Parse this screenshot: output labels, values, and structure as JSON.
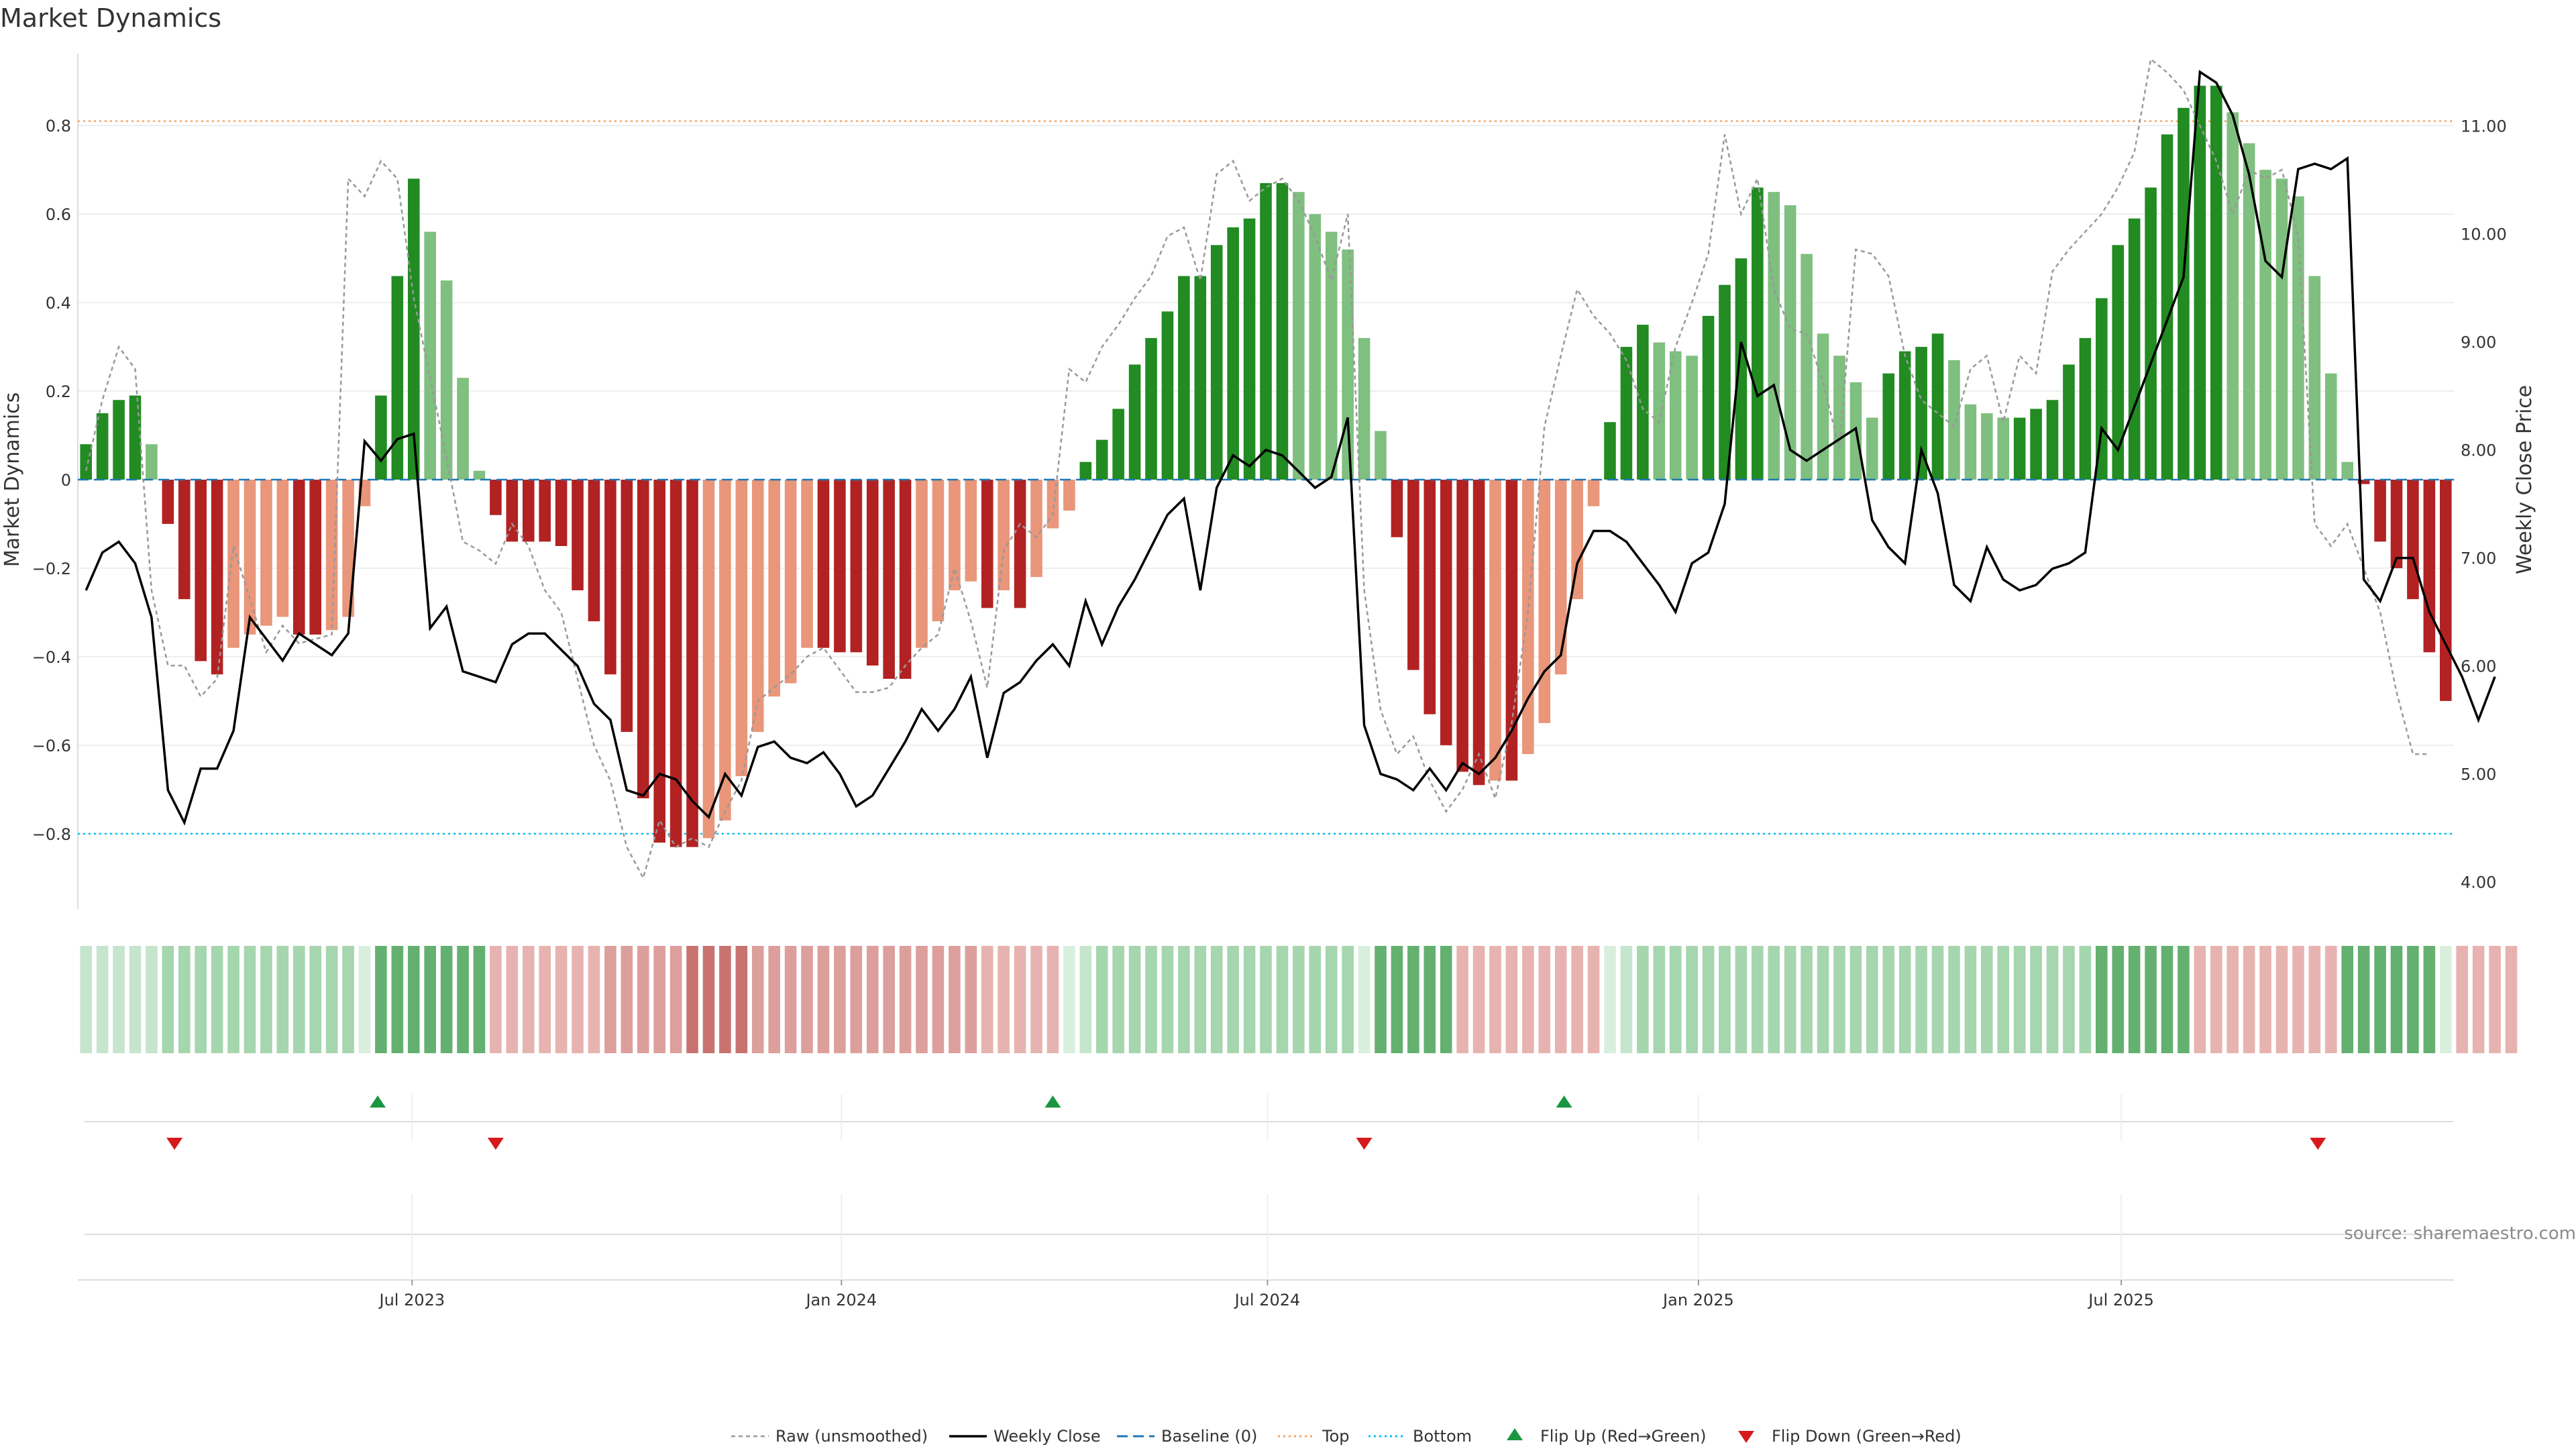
{
  "title": "Market Dynamics",
  "source": "source: sharemaestro.com",
  "colors": {
    "green_strong": "#228b22",
    "green_light": "#7fbf7f",
    "red_strong": "#b22222",
    "red_light": "#e9967a",
    "close_line": "#000000",
    "raw_line": "#999999",
    "baseline": "#1f77b4",
    "top": "#f4a460",
    "bottom": "#00bfff",
    "flip_up": "#1a9641",
    "flip_down": "#d7191c",
    "grid": "#eeeeee"
  },
  "chart_data": {
    "type": "bar",
    "title": "Market Dynamics",
    "ylabel": "Market Dynamics",
    "y2label": "Weekly Close Price",
    "ylim": [
      -0.97,
      0.97
    ],
    "y2lim": [
      3.75,
      11.7
    ],
    "yticks": [
      0.8,
      0.6,
      0.4,
      0.2,
      0,
      -0.2,
      -0.4,
      -0.6,
      -0.8
    ],
    "ytick_labels": [
      "0.8",
      "0.6",
      "0.4",
      "0.2",
      "0",
      "−0.2",
      "−0.4",
      "−0.6",
      "−0.8"
    ],
    "y2ticks": [
      11,
      10,
      9,
      8,
      7,
      6,
      5,
      4
    ],
    "y2tick_labels": [
      "11.00",
      "10.00",
      "9.00",
      "8.00",
      "7.00",
      "6.00",
      "5.00",
      "4.00"
    ],
    "x_start": "2023-02-13",
    "x_end": "2025-10-20",
    "xticks": [
      {
        "label": "Jul 2023",
        "week": 20.4
      },
      {
        "label": "Jan 2024",
        "week": 46.6
      },
      {
        "label": "Jul 2024",
        "week": 72.6
      },
      {
        "label": "Jan 2025",
        "week": 98.9
      },
      {
        "label": "Jul 2025",
        "week": 124.7
      }
    ],
    "top_threshold": 0.81,
    "bottom_threshold": -0.8,
    "baseline": 0,
    "series": [
      {
        "name": "Market Dynamics",
        "values": [
          0.08,
          0.15,
          0.18,
          0.19,
          0.08,
          -0.1,
          -0.27,
          -0.41,
          -0.44,
          -0.38,
          -0.35,
          -0.33,
          -0.31,
          -0.35,
          -0.35,
          -0.34,
          -0.31,
          -0.06,
          0.19,
          0.46,
          0.68,
          0.56,
          0.45,
          0.23,
          0.02,
          -0.08,
          -0.14,
          -0.14,
          -0.14,
          -0.15,
          -0.25,
          -0.32,
          -0.44,
          -0.57,
          -0.72,
          -0.82,
          -0.83,
          -0.83,
          -0.81,
          -0.77,
          -0.67,
          -0.57,
          -0.49,
          -0.46,
          -0.38,
          -0.38,
          -0.39,
          -0.39,
          -0.42,
          -0.45,
          -0.45,
          -0.38,
          -0.32,
          -0.25,
          -0.23,
          -0.29,
          -0.25,
          -0.29,
          -0.22,
          -0.11,
          -0.07,
          0.04,
          0.09,
          0.16,
          0.26,
          0.32,
          0.38,
          0.46,
          0.46,
          0.53,
          0.57,
          0.59,
          0.67,
          0.67,
          0.65,
          0.6,
          0.56,
          0.52,
          0.32,
          0.11,
          -0.13,
          -0.43,
          -0.53,
          -0.6,
          -0.66,
          -0.69,
          -0.68,
          -0.68,
          -0.62,
          -0.55,
          -0.44,
          -0.27,
          -0.06,
          0.13,
          0.3,
          0.35,
          0.31,
          0.29,
          0.28,
          0.37,
          0.44,
          0.5,
          0.66,
          0.65,
          0.62,
          0.51,
          0.33,
          0.28,
          0.22,
          0.14,
          0.24,
          0.29,
          0.3,
          0.33,
          0.27,
          0.17,
          0.15,
          0.14,
          0.14,
          0.16,
          0.18,
          0.26,
          0.32,
          0.41,
          0.53,
          0.59,
          0.66,
          0.78,
          0.84,
          0.89,
          0.89,
          0.83,
          0.76,
          0.7,
          0.68,
          0.64,
          0.46,
          0.24,
          0.04,
          -0.01,
          -0.14,
          -0.2,
          -0.27,
          -0.39,
          -0.5
        ]
      },
      {
        "name": "Weekly Close",
        "axis": "right",
        "values": [
          6.7,
          7.05,
          7.15,
          6.95,
          6.45,
          4.85,
          4.55,
          5.05,
          5.05,
          5.4,
          6.45,
          6.25,
          6.05,
          6.3,
          6.2,
          6.1,
          6.3,
          8.08,
          7.9,
          8.1,
          8.15,
          6.35,
          6.55,
          5.95,
          5.9,
          5.85,
          6.2,
          6.3,
          6.3,
          6.15,
          6.0,
          5.65,
          5.5,
          4.85,
          4.8,
          5.0,
          4.95,
          4.75,
          4.6,
          5.0,
          4.8,
          5.25,
          5.3,
          5.15,
          5.1,
          5.2,
          5.0,
          4.7,
          4.8,
          5.05,
          5.3,
          5.6,
          5.4,
          5.6,
          5.9,
          5.15,
          5.75,
          5.85,
          6.05,
          6.2,
          6.0,
          6.6,
          6.2,
          6.55,
          6.8,
          7.1,
          7.4,
          7.55,
          6.7,
          7.65,
          7.95,
          7.85,
          8.0,
          7.95,
          7.8,
          7.65,
          7.75,
          8.3,
          5.45,
          5.0,
          4.95,
          4.85,
          5.05,
          4.85,
          5.1,
          5.0,
          5.15,
          5.4,
          5.7,
          5.95,
          6.1,
          6.95,
          7.25,
          7.25,
          7.15,
          6.95,
          6.75,
          6.5,
          6.95,
          7.05,
          7.5,
          9.0,
          8.5,
          8.6,
          8.0,
          7.9,
          8.0,
          8.1,
          8.2,
          7.35,
          7.1,
          6.95,
          8.0,
          7.6,
          6.75,
          6.6,
          7.1,
          6.8,
          6.7,
          6.75,
          6.9,
          6.95,
          7.05,
          8.2,
          8.0,
          8.4,
          8.8,
          9.2,
          9.6,
          11.5,
          11.4,
          11.1,
          10.55,
          9.75,
          9.6,
          10.6,
          10.65,
          10.6,
          10.7,
          6.8,
          6.6,
          7.0,
          7.0,
          6.5,
          6.2,
          5.9,
          5.5,
          5.9
        ]
      },
      {
        "name": "Raw (unsmoothed)",
        "values": [
          0.02,
          0.18,
          0.3,
          0.25,
          -0.25,
          -0.42,
          -0.42,
          -0.49,
          -0.45,
          -0.15,
          -0.27,
          -0.39,
          -0.33,
          -0.37,
          -0.36,
          -0.35,
          0.68,
          0.64,
          0.72,
          0.68,
          0.41,
          0.23,
          0.05,
          -0.14,
          -0.16,
          -0.19,
          -0.1,
          -0.15,
          -0.25,
          -0.3,
          -0.45,
          -0.6,
          -0.68,
          -0.83,
          -0.9,
          -0.77,
          -0.83,
          -0.81,
          -0.83,
          -0.75,
          -0.68,
          -0.5,
          -0.47,
          -0.44,
          -0.4,
          -0.38,
          -0.43,
          -0.48,
          -0.48,
          -0.47,
          -0.42,
          -0.38,
          -0.35,
          -0.2,
          -0.32,
          -0.47,
          -0.16,
          -0.1,
          -0.13,
          -0.08,
          0.25,
          0.22,
          0.3,
          0.35,
          0.41,
          0.46,
          0.55,
          0.57,
          0.45,
          0.69,
          0.72,
          0.63,
          0.66,
          0.68,
          0.63,
          0.55,
          0.45,
          0.6,
          -0.25,
          -0.52,
          -0.62,
          -0.58,
          -0.68,
          -0.75,
          -0.7,
          -0.62,
          -0.72,
          -0.55,
          -0.3,
          0.12,
          0.28,
          0.43,
          0.37,
          0.33,
          0.27,
          0.16,
          0.13,
          0.3,
          0.4,
          0.51,
          0.78,
          0.6,
          0.68,
          0.43,
          0.34,
          0.33,
          0.22,
          0.07,
          0.52,
          0.51,
          0.46,
          0.28,
          0.18,
          0.15,
          0.12,
          0.25,
          0.28,
          0.13,
          0.28,
          0.24,
          0.47,
          0.52,
          0.56,
          0.6,
          0.66,
          0.74,
          0.95,
          0.92,
          0.88,
          0.8,
          0.72,
          0.6,
          0.7,
          0.68,
          0.7,
          0.55,
          -0.1,
          -0.15,
          -0.1,
          -0.2,
          -0.3,
          -0.48,
          -0.62,
          -0.62
        ]
      }
    ],
    "regime_strip": [
      1,
      1,
      1,
      1,
      1,
      2,
      2,
      2,
      2,
      2,
      2,
      2,
      2,
      2,
      2,
      2,
      2,
      3,
      4,
      4,
      4,
      4,
      4,
      4,
      4,
      5,
      5,
      5,
      5,
      5,
      5,
      5,
      6,
      6,
      6,
      6,
      6,
      7,
      7,
      7,
      7,
      6,
      6,
      6,
      6,
      6,
      6,
      6,
      6,
      6,
      6,
      6,
      6,
      6,
      6,
      5,
      5,
      5,
      5,
      5,
      3,
      1,
      2,
      2,
      2,
      2,
      2,
      2,
      2,
      2,
      2,
      2,
      2,
      2,
      2,
      2,
      2,
      2,
      3,
      4,
      4,
      4,
      4,
      4,
      5,
      5,
      5,
      5,
      5,
      5,
      5,
      5,
      5,
      3,
      1,
      2,
      2,
      2,
      2,
      2,
      2,
      2,
      2,
      2,
      2,
      2,
      2,
      2,
      2,
      2,
      2,
      2,
      2,
      2,
      2,
      2,
      2,
      2,
      2,
      2,
      2,
      2,
      2,
      4,
      4,
      4,
      4,
      4,
      4,
      5,
      5,
      5,
      5,
      5,
      5,
      5,
      5,
      5,
      4,
      4,
      4,
      4,
      4,
      4,
      3,
      5,
      5,
      5,
      5
    ],
    "regime_shades": {
      "1": "#c5e5cc",
      "2": "#a5d6ae",
      "3": "#d9efdd",
      "4": "#64b070",
      "5": "#e7b3b0",
      "6": "#dd9f9c",
      "7": "#c97370"
    },
    "flips": [
      {
        "type": "up",
        "week": 18.3
      },
      {
        "type": "down",
        "week": 5.9
      },
      {
        "type": "down",
        "week": 25.5
      },
      {
        "type": "up",
        "week": 59.5
      },
      {
        "type": "down",
        "week": 78.5
      },
      {
        "type": "up",
        "week": 90.7
      },
      {
        "type": "down",
        "week": 136.7
      }
    ],
    "legend": [
      {
        "label": "Raw (unsmoothed)",
        "kind": "raw"
      },
      {
        "label": "Weekly Close",
        "kind": "close"
      },
      {
        "label": "Baseline (0)",
        "kind": "baseline"
      },
      {
        "label": "Top",
        "kind": "top"
      },
      {
        "label": "Bottom",
        "kind": "bottom"
      },
      {
        "label": "Flip Up (Red→Green)",
        "kind": "flip_up"
      },
      {
        "label": "Flip Down (Green→Red)",
        "kind": "flip_down"
      }
    ]
  }
}
